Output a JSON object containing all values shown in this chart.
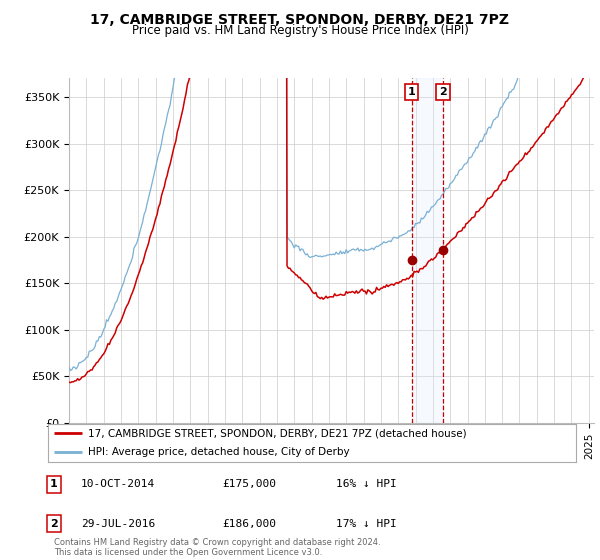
{
  "title": "17, CAMBRIDGE STREET, SPONDON, DERBY, DE21 7PZ",
  "subtitle": "Price paid vs. HM Land Registry's House Price Index (HPI)",
  "ylabel_ticks": [
    "£0",
    "£50K",
    "£100K",
    "£150K",
    "£200K",
    "£250K",
    "£300K",
    "£350K"
  ],
  "ytick_vals": [
    0,
    50000,
    100000,
    150000,
    200000,
    250000,
    300000,
    350000
  ],
  "ylim": [
    0,
    370000
  ],
  "xlim_start": 1995.0,
  "xlim_end": 2025.3,
  "sale1_date": 2014.78,
  "sale1_price": 175000,
  "sale2_date": 2016.58,
  "sale2_price": 186000,
  "red_line_color": "#cc0000",
  "blue_line_color": "#7ab0d4",
  "marker_color": "#990000",
  "vline_color": "#cc0000",
  "shade_color": "#ddeeff",
  "legend_label_red": "17, CAMBRIDGE STREET, SPONDON, DERBY, DE21 7PZ (detached house)",
  "legend_label_blue": "HPI: Average price, detached house, City of Derby",
  "annot1": [
    "1",
    "10-OCT-2014",
    "£175,000",
    "16% ↓ HPI"
  ],
  "annot2": [
    "2",
    "29-JUL-2016",
    "£186,000",
    "17% ↓ HPI"
  ],
  "footer": "Contains HM Land Registry data © Crown copyright and database right 2024.\nThis data is licensed under the Open Government Licence v3.0.",
  "background_color": "#ffffff",
  "plot_bg_color": "#ffffff",
  "grid_color": "#cccccc"
}
